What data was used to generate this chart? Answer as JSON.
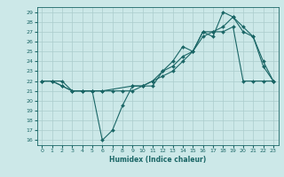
{
  "xlabel": "Humidex (Indice chaleur)",
  "bg_color": "#cce8e8",
  "grid_color": "#aacccc",
  "line_color": "#1a6666",
  "xlim": [
    -0.5,
    23.5
  ],
  "ylim": [
    15.5,
    29.5
  ],
  "xticks": [
    0,
    1,
    2,
    3,
    4,
    5,
    6,
    7,
    8,
    9,
    10,
    11,
    12,
    13,
    14,
    15,
    16,
    17,
    18,
    19,
    20,
    21,
    22,
    23
  ],
  "yticks": [
    16,
    17,
    18,
    19,
    20,
    21,
    22,
    23,
    24,
    25,
    26,
    27,
    28,
    29
  ],
  "line1_x": [
    0,
    1,
    2,
    3,
    4,
    5,
    6,
    7,
    8,
    9,
    10,
    11,
    12,
    13,
    14,
    15,
    16,
    17,
    18,
    19,
    20,
    21,
    22,
    23
  ],
  "line1_y": [
    22,
    22,
    21.5,
    21,
    21,
    21,
    16,
    17,
    19.5,
    21.5,
    21.5,
    21.5,
    23,
    23.5,
    24.5,
    25,
    27,
    27,
    27,
    27.5,
    22,
    22,
    22,
    22
  ],
  "line2_x": [
    0,
    1,
    2,
    3,
    4,
    5,
    6,
    7,
    8,
    9,
    10,
    11,
    12,
    13,
    14,
    15,
    16,
    17,
    18,
    19,
    20,
    21,
    22,
    23
  ],
  "line2_y": [
    22,
    22,
    21.5,
    21,
    21,
    21,
    21,
    21,
    21,
    21,
    21.5,
    22,
    22.5,
    23,
    24,
    25,
    26.5,
    27,
    27.5,
    28.5,
    27,
    26.5,
    23.5,
    22
  ],
  "line3_x": [
    0,
    2,
    3,
    4,
    5,
    6,
    9,
    10,
    11,
    12,
    13,
    14,
    15,
    16,
    17,
    18,
    19,
    20,
    21,
    22,
    23
  ],
  "line3_y": [
    22,
    22,
    21,
    21,
    21,
    21,
    21.5,
    21.5,
    22,
    23,
    24,
    25.5,
    25,
    27,
    26.5,
    29,
    28.5,
    27.5,
    26.5,
    24,
    22
  ]
}
